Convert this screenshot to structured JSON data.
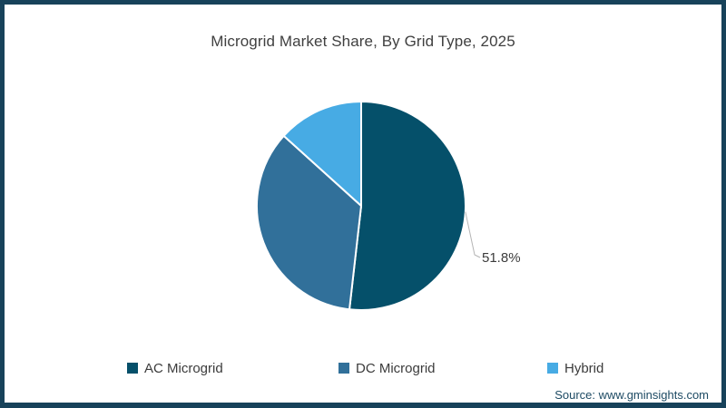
{
  "header": {
    "title": "Microgrid Market Share, By Grid Type, 2025"
  },
  "chart_data": {
    "type": "pie",
    "title": "Microgrid Market Share, By Grid Type, 2025",
    "categories": [
      "AC Microgrid",
      "DC Microgrid",
      "Hybrid"
    ],
    "values": [
      51.8,
      34.9,
      13.3
    ],
    "unit": "%",
    "colors": [
      "#05506a",
      "#31709a",
      "#47abe4"
    ],
    "start_position": "12-o-clock",
    "direction": "clockwise",
    "legend_position": "bottom",
    "callout": {
      "slice": "AC Microgrid",
      "text": "51.8%"
    }
  },
  "legend": {
    "items": [
      {
        "label": "AC Microgrid",
        "color": "#05506a"
      },
      {
        "label": "DC Microgrid",
        "color": "#31709a"
      },
      {
        "label": "Hybrid",
        "color": "#47abe4"
      }
    ]
  },
  "footer": {
    "source": "Source: www.gminsights.com"
  },
  "frame": {
    "border_color": "#17425a",
    "background": "#ffffff"
  }
}
